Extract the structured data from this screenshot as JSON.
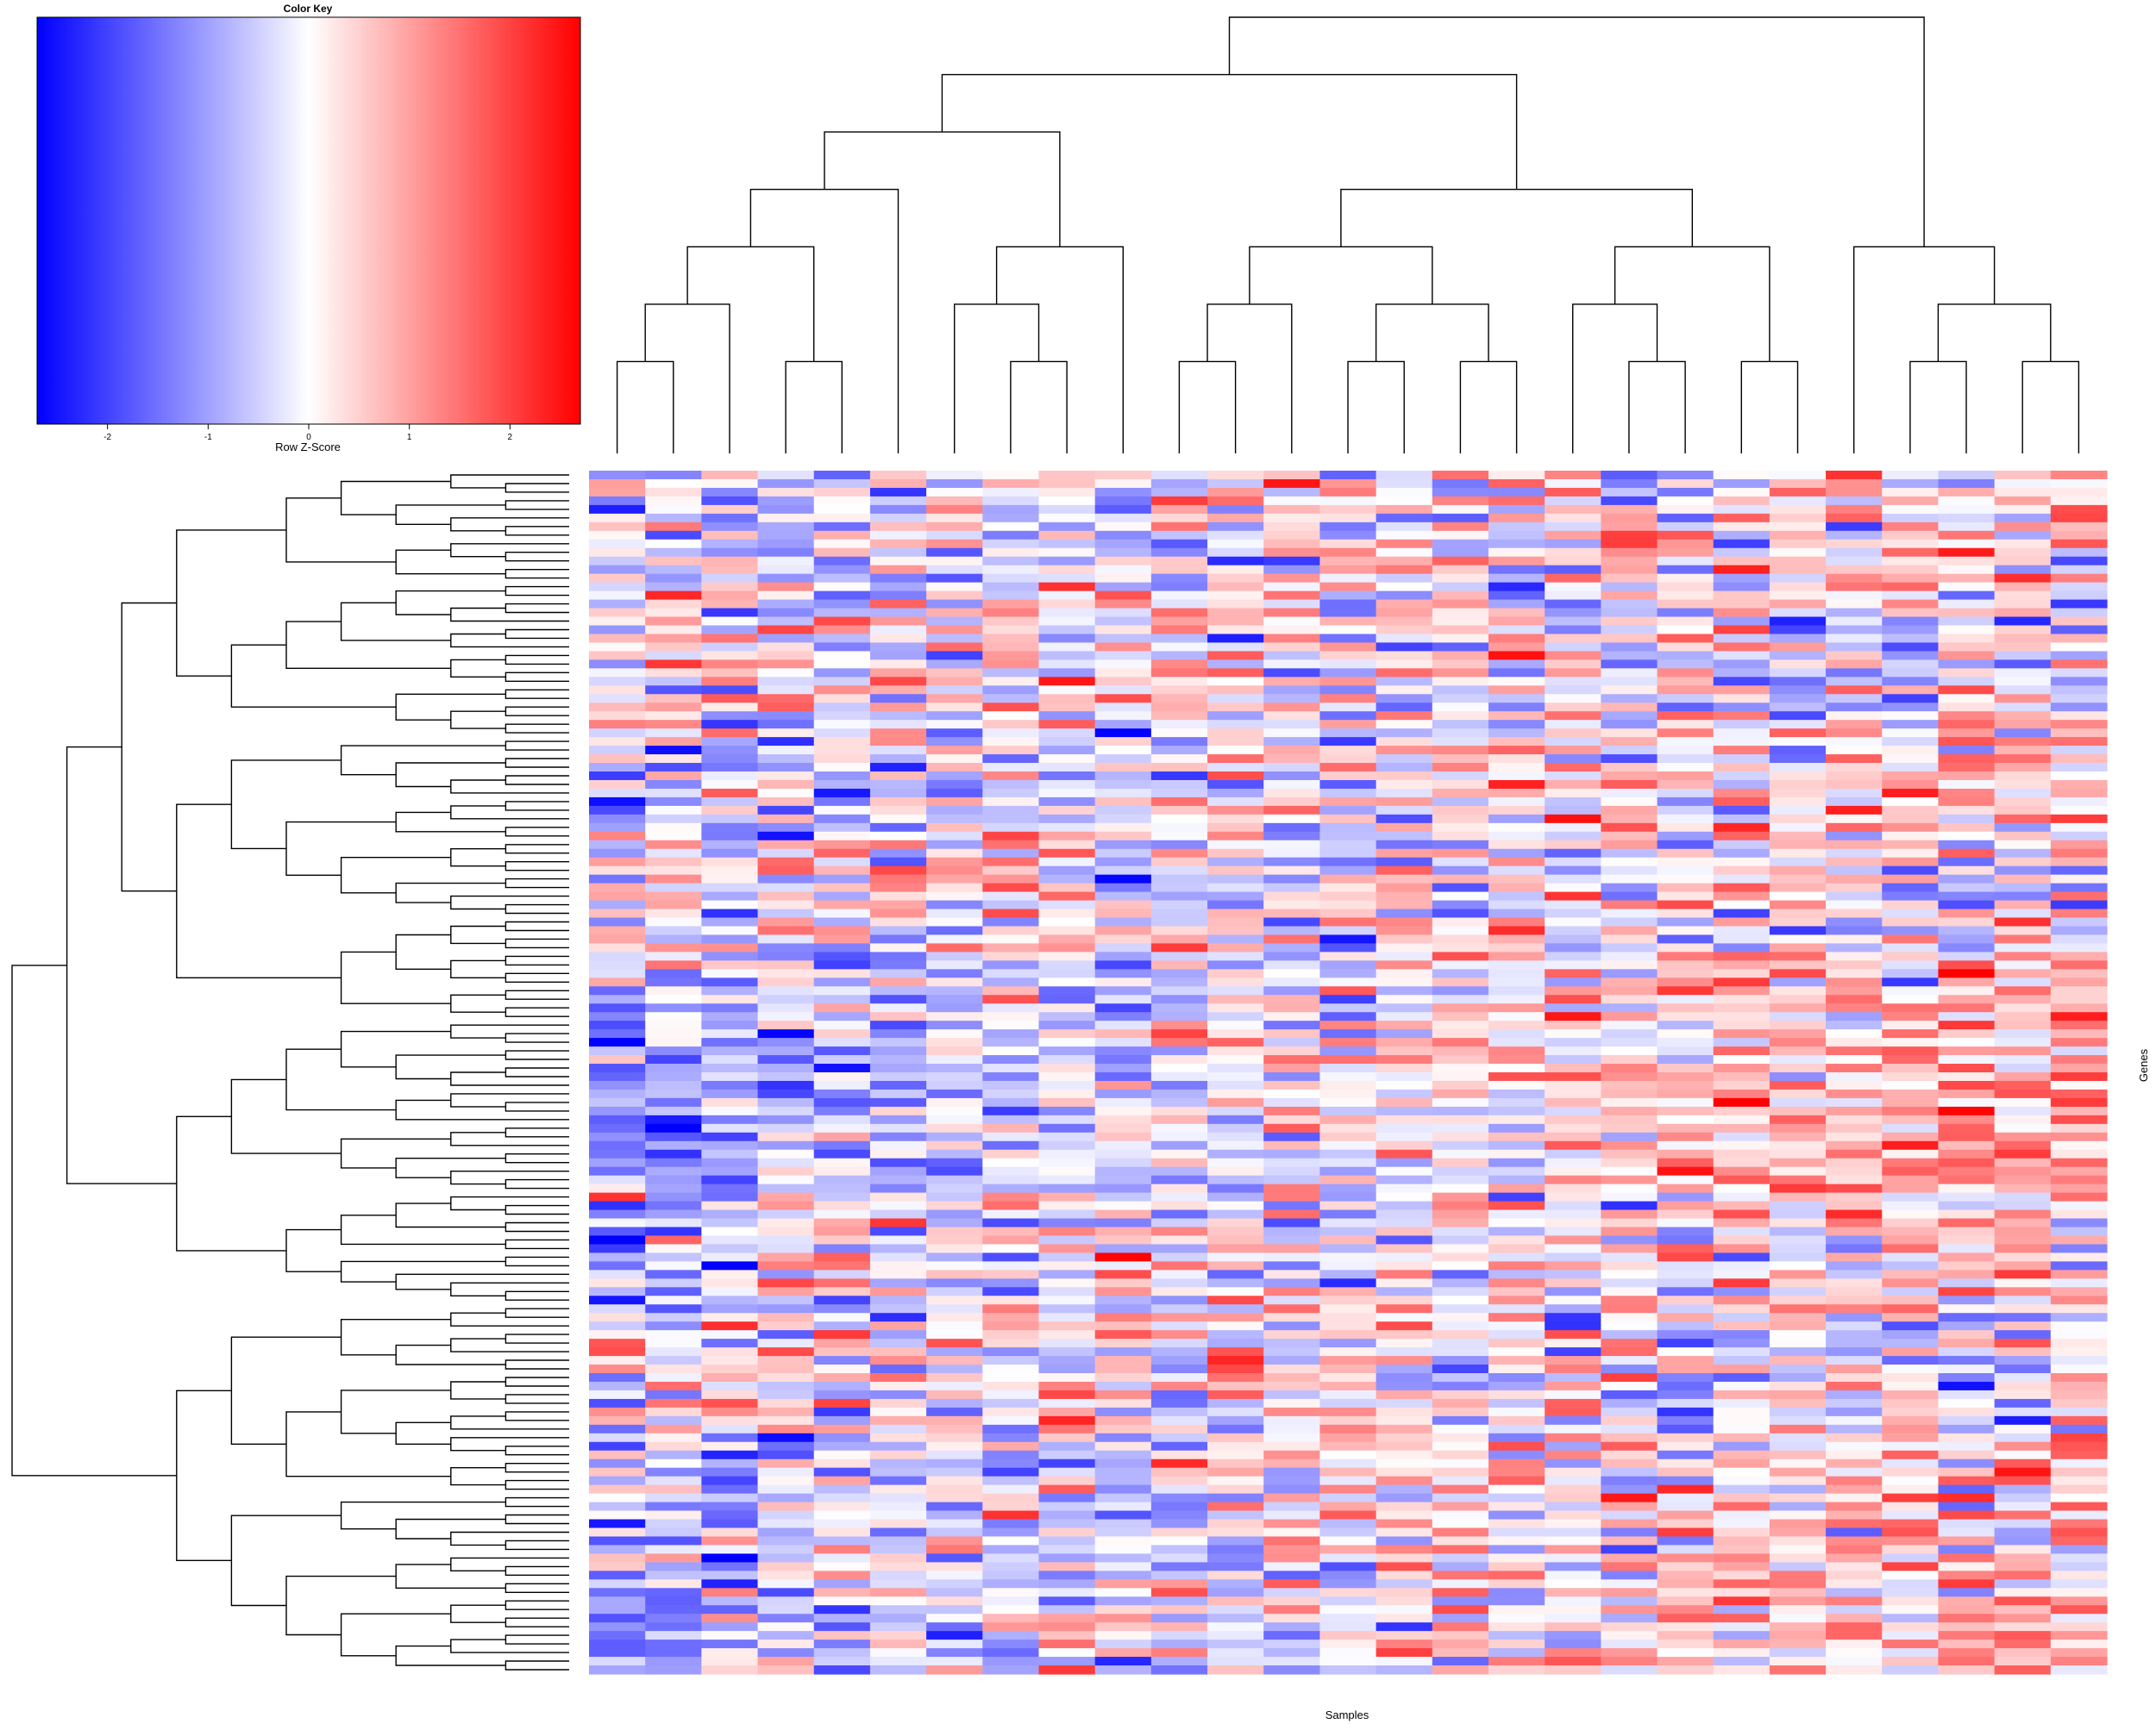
{
  "chart_data": {
    "type": "heatmap",
    "title": "",
    "xlabel": "Samples",
    "ylabel": "Genes",
    "n_columns": 27,
    "n_rows": 140,
    "value_range": [
      -2.7,
      2.7
    ],
    "color_scale": {
      "low": "#0000ff",
      "mid": "#ffffff",
      "high": "#ff0000"
    },
    "color_key": {
      "title": "Color Key",
      "xlabel": "Row Z-Score",
      "ticks": [
        -2,
        -1,
        0,
        1,
        2
      ],
      "tick_labels": [
        "-2",
        "-1",
        "0",
        "1",
        "2"
      ]
    },
    "column_dendrogram": "((((((1,2),3),(4,5)),6),((7,(8,9)),10)),((((11,12),13),((14,15),(16,17))),((18,(19,20)),(21,22))),(23,((24,25),(26,27)))))",
    "row_dendrogram": "hierarchical, 140 leaves, drawn on left side",
    "values_note": "row-scaled z-score values, approx. 140 genes x 27 samples"
  }
}
